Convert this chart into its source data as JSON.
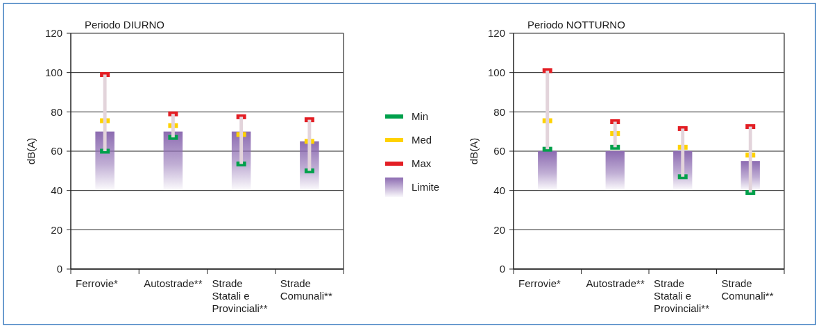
{
  "chart_data": [
    {
      "type": "bar",
      "title": "Periodo DIURNO",
      "ylabel": "dB(A)",
      "categories": [
        "Ferrovie*",
        "Autostrade**",
        "Strade Statali e Provinciali**",
        "Strade Comunali**"
      ],
      "ylim": [
        0,
        120
      ],
      "yticks": [
        0,
        20,
        40,
        60,
        80,
        100,
        120
      ],
      "grid": "y",
      "legend": "right",
      "marker": "square",
      "series": [
        {
          "type": "bar",
          "name": "Limite",
          "color": "#8c6bb1",
          "base": [
            40,
            40,
            40,
            40
          ],
          "values": [
            30,
            30,
            30,
            25
          ]
        },
        {
          "type": "bar",
          "color": "#e3d4db",
          "base": [
            60,
            67,
            53.5,
            50
          ],
          "values": [
            39,
            12,
            24,
            26
          ]
        },
        {
          "type": "scatter",
          "name": "Min",
          "color": "#00a04b",
          "values": [
            60,
            67,
            53.5,
            50
          ]
        },
        {
          "type": "scatter",
          "name": "Med",
          "color": "#ffd200",
          "values": [
            75.5,
            73,
            68.5,
            65
          ]
        },
        {
          "type": "scatter",
          "name": "Max",
          "color": "#e31e24",
          "values": [
            99,
            79,
            77.5,
            76
          ]
        }
      ]
    },
    {
      "type": "bar",
      "title": "Periodo NOTTURNO",
      "ylabel": "dB(A)",
      "categories": [
        "Ferrovie*",
        "Autostrade**",
        "Strade Statali e Provinciali**",
        "Strade Comunali**"
      ],
      "ylim": [
        0,
        120
      ],
      "yticks": [
        0,
        20,
        40,
        60,
        80,
        100,
        120
      ],
      "grid": "y",
      "marker": "square",
      "series": [
        {
          "type": "bar",
          "color": "#8c6bb1",
          "base": [
            40,
            40,
            40,
            40
          ],
          "values": [
            20,
            20,
            20,
            15
          ]
        },
        {
          "type": "bar",
          "color": "#e3d4db",
          "base": [
            61,
            62,
            47,
            39
          ],
          "values": [
            40,
            13,
            24.5,
            33.5
          ]
        },
        {
          "type": "scatter",
          "color": "#00a04b",
          "values": [
            61,
            62,
            47,
            39
          ]
        },
        {
          "type": "scatter",
          "color": "#ffd200",
          "values": [
            75.5,
            69,
            62,
            58
          ]
        },
        {
          "type": "scatter",
          "color": "#e31e24",
          "values": [
            101,
            75,
            71.5,
            72.5
          ]
        }
      ]
    }
  ]
}
